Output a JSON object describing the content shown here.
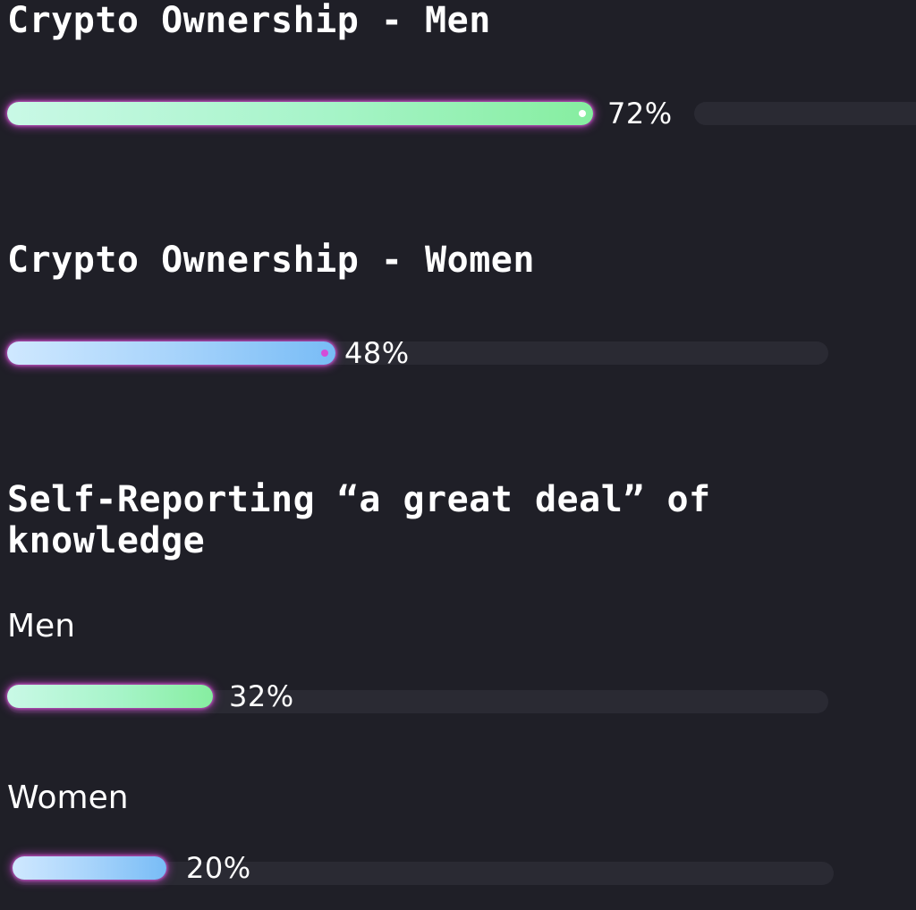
{
  "sections": [
    {
      "title": "Crypto Ownership - Men",
      "value_percent": 72,
      "value_label": "72%",
      "color": "green"
    },
    {
      "title": "Crypto Ownership - Women",
      "value_percent": 48,
      "value_label": "48%",
      "color": "blue"
    }
  ],
  "knowledge": {
    "title": "Self-Reporting “a great deal” of knowledge",
    "rows": [
      {
        "label": "Men",
        "value_percent": 32,
        "value_label": "32%",
        "color": "green"
      },
      {
        "label": "Women",
        "value_percent": 20,
        "value_label": "20%",
        "color": "blue"
      }
    ]
  },
  "colors": {
    "background": "#1f1f27",
    "track": "#2a2a33",
    "green_fill": "#86eea0",
    "blue_fill": "#78bcf6",
    "glow": "#d648dc"
  }
}
